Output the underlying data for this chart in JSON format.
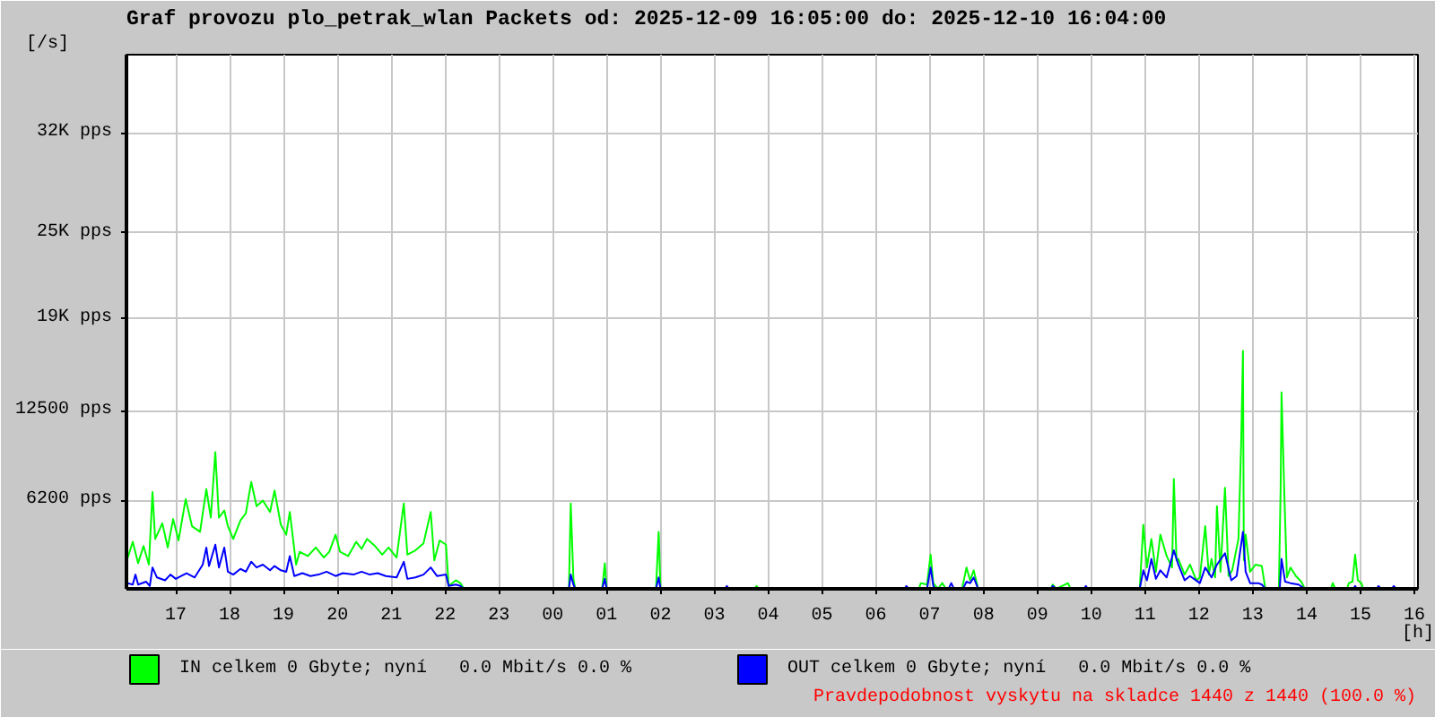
{
  "chart_data": {
    "type": "line",
    "title": "Graf provozu plo_petrak_wlan Packets od: 2025-12-09 16:05:00 do: 2025-12-10 16:04:00",
    "xlabel": "[h]",
    "ylabel": "[/s]",
    "annotations": [
      "Pravdepodobnost vyskytu na skladce 1440 z 1440 (100.0 %)"
    ],
    "xlim": [
      "2025-12-09T16:05",
      "2025-12-10T16:04"
    ],
    "xticks": [
      {
        "value": "2025-12-09T17:00",
        "label": "17"
      },
      {
        "value": "2025-12-09T18:00",
        "label": "18"
      },
      {
        "value": "2025-12-09T19:00",
        "label": "19"
      },
      {
        "value": "2025-12-09T20:00",
        "label": "20"
      },
      {
        "value": "2025-12-09T21:00",
        "label": "21"
      },
      {
        "value": "2025-12-09T22:00",
        "label": "22"
      },
      {
        "value": "2025-12-09T23:00",
        "label": "23"
      },
      {
        "value": "2025-12-10T00:00",
        "label": "00"
      },
      {
        "value": "2025-12-10T01:00",
        "label": "01"
      },
      {
        "value": "2025-12-10T02:00",
        "label": "02"
      },
      {
        "value": "2025-12-10T03:00",
        "label": "03"
      },
      {
        "value": "2025-12-10T04:00",
        "label": "04"
      },
      {
        "value": "2025-12-10T05:00",
        "label": "05"
      },
      {
        "value": "2025-12-10T06:00",
        "label": "06"
      },
      {
        "value": "2025-12-10T07:00",
        "label": "07"
      },
      {
        "value": "2025-12-10T08:00",
        "label": "08"
      },
      {
        "value": "2025-12-10T09:00",
        "label": "09"
      },
      {
        "value": "2025-12-10T10:00",
        "label": "10"
      },
      {
        "value": "2025-12-10T11:00",
        "label": "11"
      },
      {
        "value": "2025-12-10T12:00",
        "label": "12"
      },
      {
        "value": "2025-12-10T13:00",
        "label": "13"
      },
      {
        "value": "2025-12-10T14:00",
        "label": "14"
      },
      {
        "value": "2025-12-10T15:00",
        "label": "15"
      },
      {
        "value": "2025-12-10T16:00",
        "label": "16"
      }
    ],
    "ylim": [
      0,
      37500
    ],
    "yticks": [
      {
        "value": 6200,
        "label": "6200 pps"
      },
      {
        "value": 12500,
        "label": "12500 pps"
      },
      {
        "value": 19000,
        "label": "19K pps"
      },
      {
        "value": 25000,
        "label": "25K pps"
      },
      {
        "value": 32000,
        "label": "32K pps"
      }
    ],
    "grid": true,
    "legend": "bottom",
    "line_style": "solid",
    "series": [
      {
        "name": "IN celkem 0 Gbyte; nyní   0.0 Mbit/s 0.0 %",
        "color": "#00ff00",
        "x": [
          "2025-12-09T16:06",
          "2025-12-09T16:12",
          "2025-12-09T16:18",
          "2025-12-09T16:24",
          "2025-12-09T16:30",
          "2025-12-09T16:34",
          "2025-12-09T16:37",
          "2025-12-09T16:45",
          "2025-12-09T16:51",
          "2025-12-09T16:57",
          "2025-12-09T17:03",
          "2025-12-09T17:11",
          "2025-12-09T17:18",
          "2025-12-09T17:27",
          "2025-12-09T17:34",
          "2025-12-09T17:39",
          "2025-12-09T17:44",
          "2025-12-09T17:48",
          "2025-12-09T17:54",
          "2025-12-09T17:58",
          "2025-12-09T18:04",
          "2025-12-09T18:12",
          "2025-12-09T18:18",
          "2025-12-09T18:24",
          "2025-12-09T18:30",
          "2025-12-09T18:37",
          "2025-12-09T18:45",
          "2025-12-09T18:50",
          "2025-12-09T18:57",
          "2025-12-09T19:03",
          "2025-12-09T19:07",
          "2025-12-09T19:11",
          "2025-12-09T19:14",
          "2025-12-09T19:18",
          "2025-12-09T19:27",
          "2025-12-09T19:36",
          "2025-12-09T19:45",
          "2025-12-09T19:51",
          "2025-12-09T19:58",
          "2025-12-09T20:03",
          "2025-12-09T20:12",
          "2025-12-09T20:21",
          "2025-12-09T20:27",
          "2025-12-09T20:33",
          "2025-12-09T20:42",
          "2025-12-09T20:50",
          "2025-12-09T20:57",
          "2025-12-09T21:06",
          "2025-12-09T21:14",
          "2025-12-09T21:18",
          "2025-12-09T21:27",
          "2025-12-09T21:36",
          "2025-12-09T21:44",
          "2025-12-09T21:48",
          "2025-12-09T21:54",
          "2025-12-09T22:01",
          "2025-12-09T22:04",
          "2025-12-09T22:12",
          "2025-12-09T22:17",
          "2025-12-09T22:21",
          "2025-12-10T00:18",
          "2025-12-10T00:20",
          "2025-12-10T00:23",
          "2025-12-10T00:25",
          "2025-12-10T00:55",
          "2025-12-10T00:58",
          "2025-12-10T01:00",
          "2025-12-10T01:55",
          "2025-12-10T01:58",
          "2025-12-10T02:00",
          "2025-12-10T03:45",
          "2025-12-10T03:47",
          "2025-12-10T03:50",
          "2025-12-10T06:48",
          "2025-12-10T06:50",
          "2025-12-10T06:57",
          "2025-12-10T07:01",
          "2025-12-10T07:04",
          "2025-12-10T07:09",
          "2025-12-10T07:14",
          "2025-12-10T07:18",
          "2025-12-10T07:36",
          "2025-12-10T07:41",
          "2025-12-10T07:45",
          "2025-12-10T07:49",
          "2025-12-10T07:54",
          "2025-12-10T09:15",
          "2025-12-10T09:17",
          "2025-12-10T09:21",
          "2025-12-10T09:34",
          "2025-12-10T09:37",
          "2025-12-10T10:54",
          "2025-12-10T10:58",
          "2025-12-10T11:02",
          "2025-12-10T11:07",
          "2025-12-10T11:12",
          "2025-12-10T11:17",
          "2025-12-10T11:24",
          "2025-12-10T11:30",
          "2025-12-10T11:32",
          "2025-12-10T11:35",
          "2025-12-10T11:37",
          "2025-12-10T11:44",
          "2025-12-10T11:50",
          "2025-12-10T11:57",
          "2025-12-10T12:01",
          "2025-12-10T12:07",
          "2025-12-10T12:11",
          "2025-12-10T12:14",
          "2025-12-10T12:18",
          "2025-12-10T12:20",
          "2025-12-10T12:24",
          "2025-12-10T12:29",
          "2025-12-10T12:33",
          "2025-12-10T12:37",
          "2025-12-10T12:44",
          "2025-12-10T12:47",
          "2025-12-10T12:49",
          "2025-12-10T12:50",
          "2025-12-10T12:52",
          "2025-12-10T12:57",
          "2025-12-10T13:03",
          "2025-12-10T13:10",
          "2025-12-10T13:14",
          "2025-12-10T13:29",
          "2025-12-10T13:31",
          "2025-12-10T13:32",
          "2025-12-10T13:35",
          "2025-12-10T13:38",
          "2025-12-10T13:42",
          "2025-12-10T13:48",
          "2025-12-10T13:54",
          "2025-12-10T13:58",
          "2025-12-10T14:27",
          "2025-12-10T14:29",
          "2025-12-10T14:32",
          "2025-12-10T14:45",
          "2025-12-10T14:47",
          "2025-12-10T14:51",
          "2025-12-10T14:54",
          "2025-12-10T14:57",
          "2025-12-10T15:01",
          "2025-12-10T15:03"
        ],
        "values": [
          2100,
          3300,
          1800,
          3000,
          1700,
          6800,
          3500,
          4600,
          2900,
          4900,
          3400,
          6300,
          4400,
          4000,
          7000,
          5000,
          9600,
          5000,
          5500,
          4400,
          3500,
          4800,
          5300,
          7500,
          5800,
          6200,
          5400,
          6900,
          4500,
          3800,
          5400,
          3300,
          1700,
          2600,
          2300,
          2900,
          2200,
          2600,
          3800,
          2600,
          2300,
          3300,
          2800,
          3500,
          3000,
          2400,
          2900,
          2200,
          6000,
          2400,
          2700,
          3200,
          5400,
          2000,
          3400,
          3100,
          200,
          600,
          400,
          0,
          0,
          6000,
          700,
          0,
          0,
          1800,
          0,
          0,
          4000,
          0,
          0,
          200,
          0,
          0,
          400,
          300,
          2400,
          400,
          0,
          400,
          0,
          0,
          1500,
          600,
          1300,
          0,
          0,
          300,
          0,
          400,
          0,
          0,
          4500,
          1500,
          3500,
          1200,
          3800,
          2300,
          1500,
          7700,
          2000,
          2100,
          1000,
          1700,
          600,
          800,
          4400,
          1000,
          2100,
          800,
          5800,
          1200,
          7100,
          900,
          1300,
          3500,
          10200,
          16700,
          2000,
          3800,
          1200,
          1700,
          1600,
          0,
          0,
          7100,
          13800,
          6900,
          800,
          1500,
          900,
          500,
          0,
          0,
          400,
          0,
          0,
          400,
          500,
          2400,
          600,
          400,
          0
        ]
      },
      {
        "name": "OUT celkem 0 Gbyte; nyní   0.0 Mbit/s 0.0 %",
        "color": "#0000ff",
        "x": [
          "2025-12-09T16:06",
          "2025-12-09T16:12",
          "2025-12-09T16:15",
          "2025-12-09T16:18",
          "2025-12-09T16:27",
          "2025-12-09T16:31",
          "2025-12-09T16:34",
          "2025-12-09T16:39",
          "2025-12-09T16:48",
          "2025-12-09T16:54",
          "2025-12-09T17:00",
          "2025-12-09T17:06",
          "2025-12-09T17:12",
          "2025-12-09T17:21",
          "2025-12-09T17:30",
          "2025-12-09T17:34",
          "2025-12-09T17:37",
          "2025-12-09T17:44",
          "2025-12-09T17:48",
          "2025-12-09T17:54",
          "2025-12-09T17:58",
          "2025-12-09T18:04",
          "2025-12-09T18:12",
          "2025-12-09T18:18",
          "2025-12-09T18:24",
          "2025-12-09T18:30",
          "2025-12-09T18:37",
          "2025-12-09T18:45",
          "2025-12-09T18:50",
          "2025-12-09T18:57",
          "2025-12-09T19:03",
          "2025-12-09T19:07",
          "2025-12-09T19:12",
          "2025-12-09T19:21",
          "2025-12-09T19:30",
          "2025-12-09T19:39",
          "2025-12-09T19:48",
          "2025-12-09T19:58",
          "2025-12-09T20:06",
          "2025-12-09T20:18",
          "2025-12-09T20:27",
          "2025-12-09T20:36",
          "2025-12-09T20:45",
          "2025-12-09T20:54",
          "2025-12-09T21:06",
          "2025-12-09T21:14",
          "2025-12-09T21:18",
          "2025-12-09T21:27",
          "2025-12-09T21:36",
          "2025-12-09T21:44",
          "2025-12-09T21:51",
          "2025-12-09T22:01",
          "2025-12-09T22:04",
          "2025-12-09T22:12",
          "2025-12-09T22:17",
          "2025-12-09T22:21",
          "2025-12-10T00:18",
          "2025-12-10T00:20",
          "2025-12-10T00:23",
          "2025-12-10T00:25",
          "2025-12-10T00:55",
          "2025-12-10T00:58",
          "2025-12-10T01:00",
          "2025-12-10T01:55",
          "2025-12-10T01:58",
          "2025-12-10T02:00",
          "2025-12-10T03:12",
          "2025-12-10T03:14",
          "2025-12-10T03:16",
          "2025-12-10T06:32",
          "2025-12-10T06:34",
          "2025-12-10T06:37",
          "2025-12-10T06:57",
          "2025-12-10T07:01",
          "2025-12-10T07:04",
          "2025-12-10T07:06",
          "2025-12-10T07:21",
          "2025-12-10T07:24",
          "2025-12-10T07:27",
          "2025-12-10T07:37",
          "2025-12-10T07:41",
          "2025-12-10T07:45",
          "2025-12-10T07:49",
          "2025-12-10T07:54",
          "2025-12-10T09:15",
          "2025-12-10T09:17",
          "2025-12-10T09:21",
          "2025-12-10T09:52",
          "2025-12-10T09:54",
          "2025-12-10T09:56",
          "2025-12-10T10:54",
          "2025-12-10T10:58",
          "2025-12-10T11:02",
          "2025-12-10T11:07",
          "2025-12-10T11:12",
          "2025-12-10T11:17",
          "2025-12-10T11:24",
          "2025-12-10T11:32",
          "2025-12-10T11:37",
          "2025-12-10T11:44",
          "2025-12-10T11:50",
          "2025-12-10T12:01",
          "2025-12-10T12:07",
          "2025-12-10T12:14",
          "2025-12-10T12:20",
          "2025-12-10T12:29",
          "2025-12-10T12:36",
          "2025-12-10T12:42",
          "2025-12-10T12:49",
          "2025-12-10T12:52",
          "2025-12-10T12:57",
          "2025-12-10T13:06",
          "2025-12-10T13:10",
          "2025-12-10T13:14",
          "2025-12-10T13:30",
          "2025-12-10T13:32",
          "2025-12-10T13:36",
          "2025-12-10T13:42",
          "2025-12-10T13:51",
          "2025-12-10T13:58",
          "2025-12-10T14:52",
          "2025-12-10T14:54",
          "2025-12-10T14:56",
          "2025-12-10T15:18",
          "2025-12-10T15:20",
          "2025-12-10T15:23",
          "2025-12-10T15:35",
          "2025-12-10T15:37",
          "2025-12-10T15:40"
        ],
        "values": [
          400,
          300,
          1000,
          300,
          500,
          200,
          1500,
          800,
          600,
          1000,
          700,
          900,
          1100,
          800,
          1700,
          2900,
          1600,
          3100,
          1500,
          2900,
          1200,
          1000,
          1400,
          1200,
          1900,
          1500,
          1700,
          1300,
          1600,
          1300,
          1200,
          2300,
          900,
          1100,
          900,
          1000,
          1200,
          900,
          1100,
          1000,
          1200,
          1000,
          1100,
          900,
          800,
          1900,
          700,
          800,
          1000,
          1500,
          900,
          1000,
          200,
          300,
          200,
          0,
          0,
          1000,
          300,
          0,
          0,
          700,
          0,
          0,
          800,
          0,
          0,
          200,
          0,
          0,
          200,
          0,
          0,
          1500,
          200,
          0,
          0,
          400,
          0,
          0,
          500,
          400,
          800,
          0,
          0,
          200,
          0,
          0,
          200,
          0,
          0,
          1300,
          600,
          2100,
          700,
          1300,
          800,
          2700,
          1700,
          600,
          900,
          400,
          1500,
          800,
          1700,
          2500,
          600,
          900,
          4000,
          1200,
          400,
          400,
          300,
          0,
          0,
          2100,
          500,
          400,
          300,
          0,
          0,
          200,
          0,
          0,
          200,
          0,
          0,
          200,
          0
        ]
      }
    ]
  }
}
